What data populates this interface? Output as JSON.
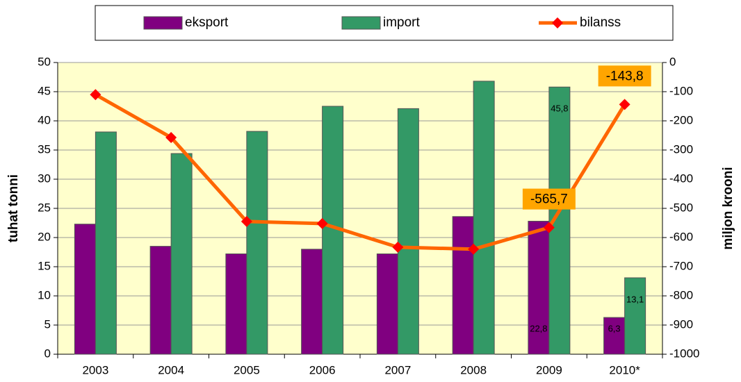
{
  "chart_data": {
    "type": "bar",
    "categories": [
      "2003",
      "2004",
      "2005",
      "2006",
      "2007",
      "2008",
      "2009",
      "2010*"
    ],
    "y_label": "tuhat tonni",
    "y2_label": "miljon krooni",
    "series": [
      {
        "name": "eksport",
        "color": "#800080",
        "type": "bar",
        "values": [
          22.3,
          18.5,
          17.2,
          18.0,
          17.2,
          23.6,
          22.8,
          6.3
        ],
        "value_labels": [
          null,
          null,
          null,
          null,
          null,
          null,
          "22,8",
          "6,3"
        ]
      },
      {
        "name": "import",
        "color": "#339966",
        "type": "bar",
        "values": [
          38.1,
          34.4,
          38.2,
          42.5,
          42.1,
          46.8,
          45.8,
          13.1
        ],
        "value_labels": [
          null,
          null,
          null,
          null,
          null,
          null,
          "45,8",
          "13,1"
        ]
      },
      {
        "name": "bilanss",
        "color": "#FF6600",
        "marker_color": "#FF0000",
        "type": "line",
        "axis": "y2",
        "values": [
          -110,
          -257,
          -545,
          -552,
          -633,
          -640,
          -565.7,
          -143.8
        ],
        "value_labels": [
          null,
          null,
          null,
          null,
          null,
          null,
          "-565,7",
          "-143,8"
        ]
      }
    ],
    "ylim": [
      0,
      50
    ],
    "yticks": [
      0,
      5,
      10,
      15,
      20,
      25,
      30,
      35,
      40,
      45,
      50
    ],
    "y2lim": [
      -1000,
      0
    ],
    "y2ticks": [
      -1000,
      -900,
      -800,
      -700,
      -600,
      -500,
      -400,
      -300,
      -200,
      -100,
      0
    ],
    "grid": true,
    "legend": "top"
  }
}
